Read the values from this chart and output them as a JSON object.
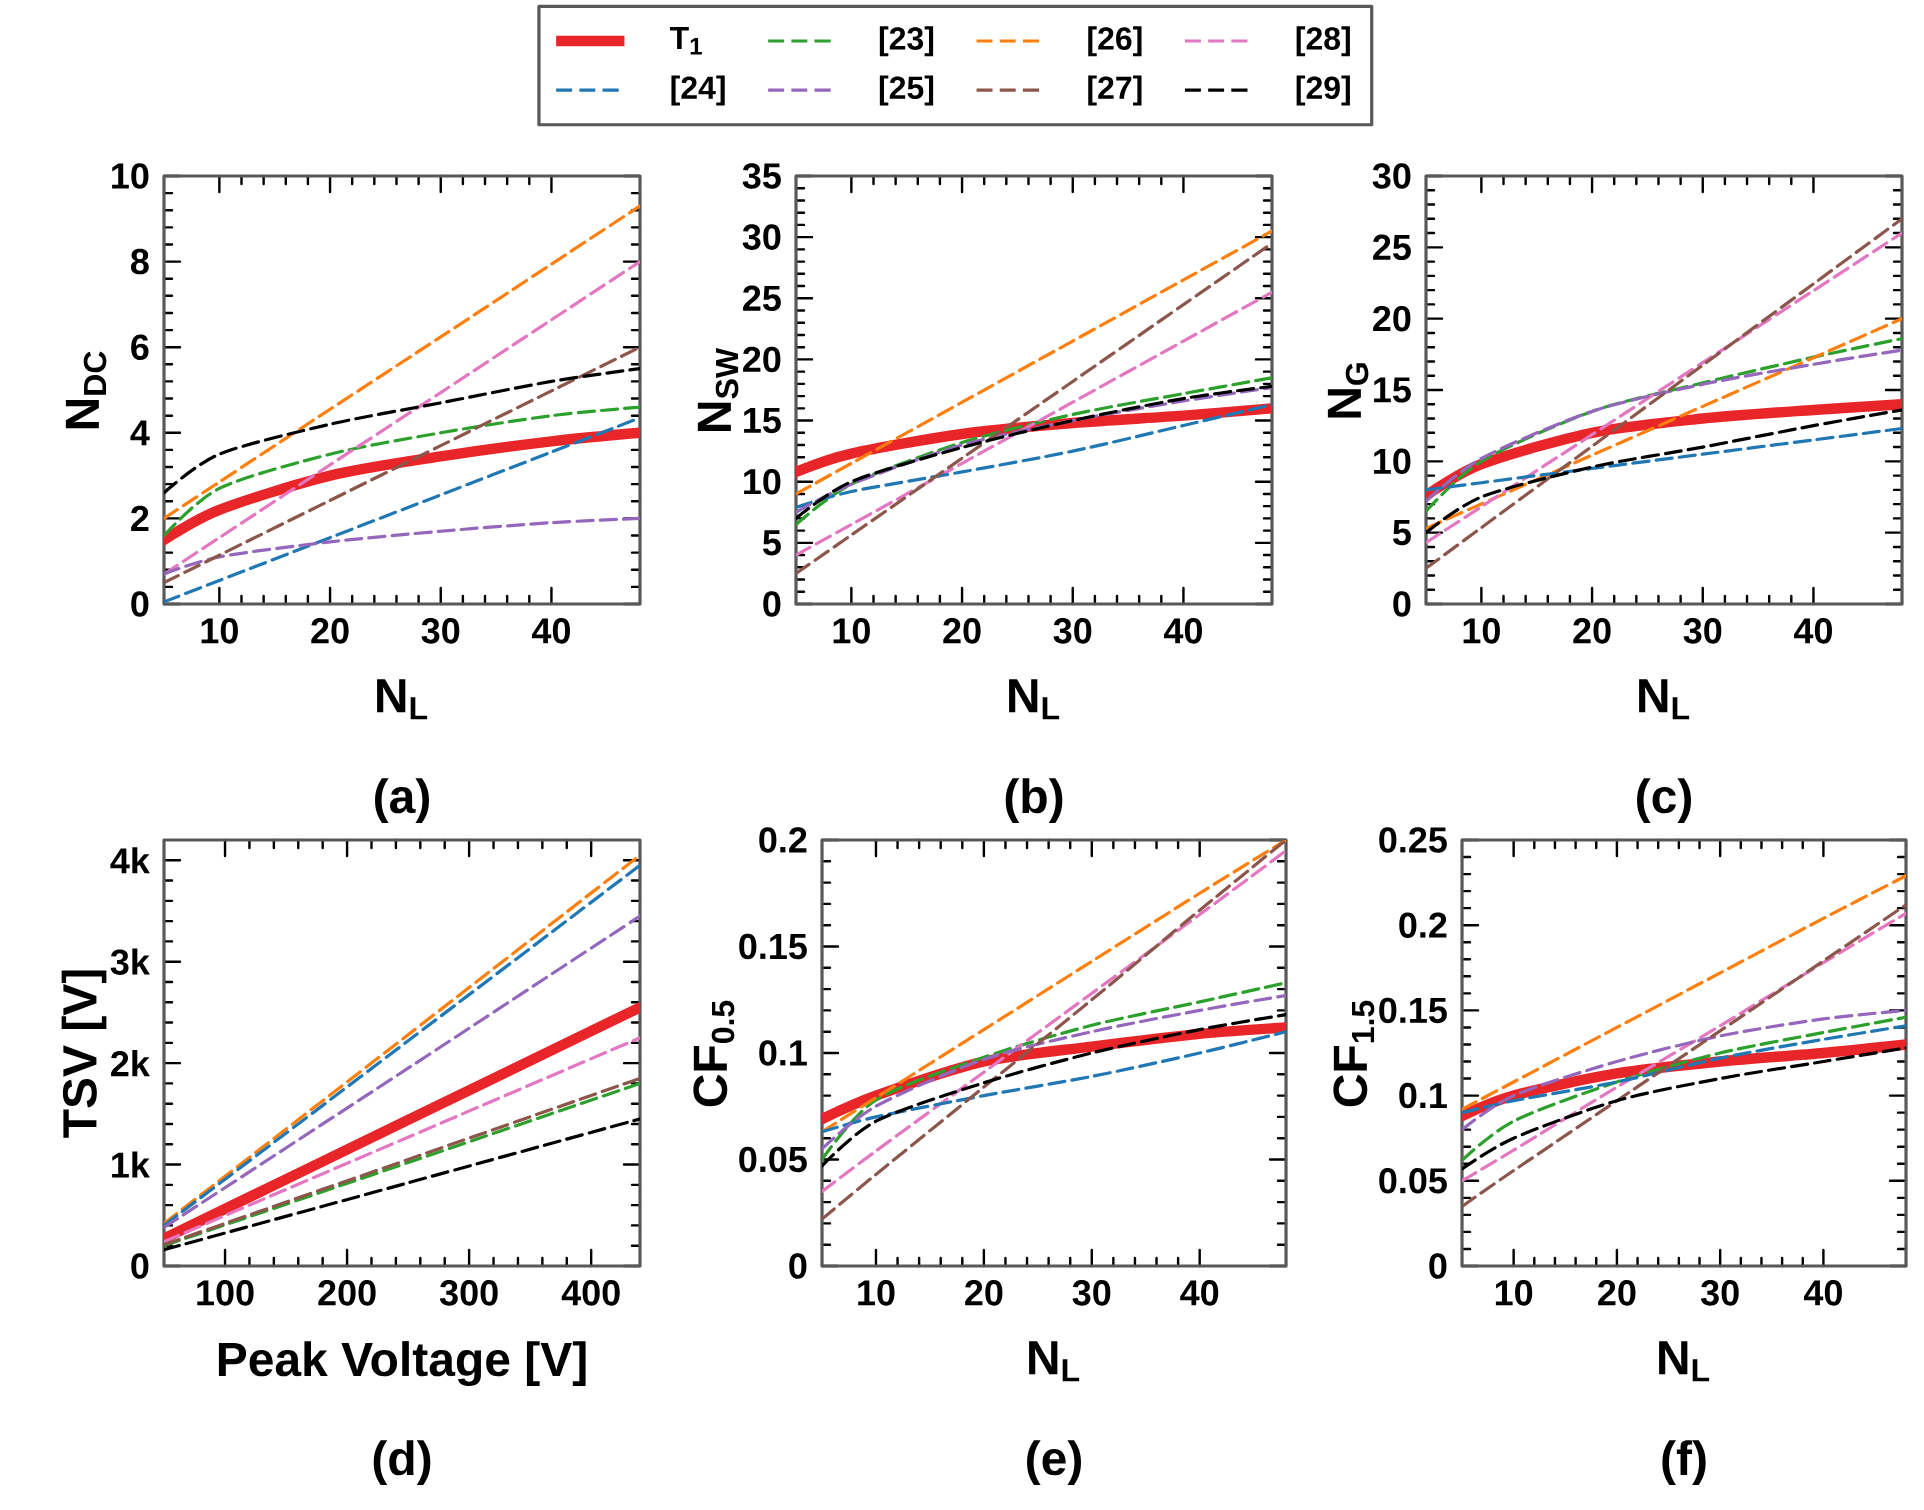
{
  "chart_data": [
    {
      "type": "line",
      "xlabel": "N$_{L}$",
      "ylabel": "N$_{DC}$",
      "annotations": [
        "(a)"
      ],
      "legend": "top",
      "x": [
        5,
        10,
        20,
        30,
        40,
        48
      ],
      "xlim": [
        5,
        48
      ],
      "xticks": [
        10,
        20,
        30,
        40
      ],
      "ylim": [
        0,
        10
      ],
      "yticks": [
        0,
        2,
        4,
        6,
        8,
        10
      ],
      "series": [
        {
          "name": "T$_{1}$",
          "color": "#e8262a",
          "line_style": "solid",
          "values": [
            1.5,
            2.2,
            3.0,
            3.45,
            3.8,
            4.0
          ]
        },
        {
          "name": "[23]",
          "color": "#2ca02c",
          "line_style": "dashed",
          "values": [
            1.6,
            2.7,
            3.5,
            4.0,
            4.4,
            4.6
          ]
        },
        {
          "name": "[26]",
          "color": "#ff7f0e",
          "line_style": "dashed",
          "values": [
            2.0,
            2.85,
            4.55,
            6.24,
            7.94,
            9.3
          ]
        },
        {
          "name": "[28]",
          "color": "#e377c2",
          "line_style": "dashed",
          "values": [
            0.7,
            1.55,
            3.25,
            4.94,
            6.64,
            8.0
          ]
        },
        {
          "name": "[24]",
          "color": "#1f77b4",
          "line_style": "dashed",
          "values": [
            0.05,
            0.55,
            1.55,
            2.55,
            3.55,
            4.35
          ]
        },
        {
          "name": "[25]",
          "color": "#9467bd",
          "line_style": "dashed",
          "values": [
            0.7,
            1.1,
            1.45,
            1.7,
            1.9,
            2.0
          ]
        },
        {
          "name": "[27]",
          "color": "#8c564b",
          "line_style": "dashed",
          "values": [
            0.5,
            1.14,
            2.42,
            3.7,
            4.98,
            6.0
          ]
        },
        {
          "name": "[29]",
          "color": "#000000",
          "line_style": "dashed",
          "values": [
            2.6,
            3.5,
            4.2,
            4.7,
            5.2,
            5.5
          ]
        }
      ]
    },
    {
      "type": "line",
      "xlabel": "N$_{L}$",
      "ylabel": "N$_{SW}$",
      "annotations": [
        "(b)"
      ],
      "x": [
        5,
        10,
        20,
        30,
        40,
        48
      ],
      "xlim": [
        5,
        48
      ],
      "xticks": [
        10,
        20,
        30,
        40
      ],
      "ylim": [
        0,
        35
      ],
      "yticks": [
        0,
        5,
        10,
        15,
        20,
        25,
        30,
        35
      ],
      "series": [
        {
          "color": "#e8262a",
          "line_style": "solid",
          "values": [
            10.8,
            12.3,
            13.9,
            14.8,
            15.4,
            16.0
          ]
        },
        {
          "color": "#2ca02c",
          "line_style": "dashed",
          "values": [
            6.5,
            9.8,
            13.2,
            15.5,
            17.2,
            18.5
          ]
        },
        {
          "color": "#ff7f0e",
          "line_style": "dashed",
          "values": [
            9.0,
            11.5,
            16.5,
            21.5,
            26.5,
            30.5
          ]
        },
        {
          "color": "#e377c2",
          "line_style": "dashed",
          "values": [
            4.0,
            6.5,
            11.5,
            16.5,
            21.5,
            25.5
          ]
        },
        {
          "color": "#1f77b4",
          "line_style": "dashed",
          "values": [
            7.9,
            9.2,
            10.8,
            12.5,
            14.6,
            16.3
          ]
        },
        {
          "color": "#9467bd",
          "line_style": "dashed",
          "values": [
            7.5,
            9.8,
            13.0,
            15.0,
            16.6,
            17.7
          ]
        },
        {
          "color": "#8c564b",
          "line_style": "dashed",
          "values": [
            2.5,
            5.64,
            11.92,
            18.2,
            24.48,
            29.5
          ]
        },
        {
          "color": "#000000",
          "line_style": "dashed",
          "values": [
            7.0,
            10.0,
            12.8,
            15.0,
            16.8,
            17.8
          ]
        }
      ]
    },
    {
      "type": "line",
      "xlabel": "N$_{L}$",
      "ylabel": "N$_{G}$",
      "annotations": [
        "(c)"
      ],
      "x": [
        5,
        10,
        20,
        30,
        40,
        48
      ],
      "xlim": [
        5,
        48
      ],
      "xticks": [
        10,
        20,
        30,
        40
      ],
      "ylim": [
        0,
        30
      ],
      "yticks": [
        0,
        5,
        10,
        15,
        20,
        25,
        30
      ],
      "series": [
        {
          "color": "#e8262a",
          "line_style": "solid",
          "values": [
            7.6,
            9.8,
            12.0,
            13.0,
            13.6,
            14.0
          ]
        },
        {
          "color": "#2ca02c",
          "line_style": "dashed",
          "values": [
            6.5,
            10.0,
            13.5,
            15.5,
            17.3,
            18.6
          ]
        },
        {
          "color": "#ff7f0e",
          "line_style": "dashed",
          "values": [
            5.3,
            7.01,
            10.43,
            13.85,
            17.26,
            20.0
          ]
        },
        {
          "color": "#e377c2",
          "line_style": "dashed",
          "values": [
            4.3,
            6.82,
            11.87,
            16.92,
            21.96,
            26.0
          ]
        },
        {
          "color": "#1f77b4",
          "line_style": "dashed",
          "values": [
            8.0,
            8.5,
            9.5,
            10.5,
            11.5,
            12.3
          ]
        },
        {
          "color": "#9467bd",
          "line_style": "dashed",
          "values": [
            7.2,
            10.2,
            13.5,
            15.4,
            16.8,
            17.8
          ]
        },
        {
          "color": "#8c564b",
          "line_style": "dashed",
          "values": [
            2.5,
            5.35,
            11.05,
            16.74,
            22.44,
            27.0
          ]
        },
        {
          "color": "#000000",
          "line_style": "dashed",
          "values": [
            5.0,
            7.5,
            9.6,
            11.0,
            12.5,
            13.6
          ]
        }
      ]
    },
    {
      "type": "line",
      "xlabel": "Peak Voltage [V]",
      "ylabel": "TSV [V]",
      "annotations": [
        "(d)"
      ],
      "x": [
        50,
        250,
        440
      ],
      "xlim": [
        50,
        440
      ],
      "xticks": [
        100,
        200,
        300,
        400
      ],
      "ylim": [
        0,
        4200
      ],
      "yticks": [
        0,
        {
          "value": 1000,
          "label": "1k"
        },
        {
          "value": 2000,
          "label": "2k"
        },
        {
          "value": 3000,
          "label": "3k"
        },
        {
          "value": 4000,
          "label": "4k"
        }
      ],
      "series": [
        {
          "color": "#e8262a",
          "line_style": "solid",
          "values": [
            270,
            1440,
            2550
          ]
        },
        {
          "color": "#2ca02c",
          "line_style": "dashed",
          "values": [
            200,
            1020,
            1800
          ]
        },
        {
          "color": "#ff7f0e",
          "line_style": "dashed",
          "values": [
            420,
            2280,
            4050
          ]
        },
        {
          "color": "#e377c2",
          "line_style": "dashed",
          "values": [
            240,
            1270,
            2250
          ]
        },
        {
          "color": "#1f77b4",
          "line_style": "dashed",
          "values": [
            400,
            2220,
            3950
          ]
        },
        {
          "color": "#9467bd",
          "line_style": "dashed",
          "values": [
            380,
            1950,
            3450
          ]
        },
        {
          "color": "#8c564b",
          "line_style": "dashed",
          "values": [
            210,
            1050,
            1850
          ]
        },
        {
          "color": "#000000",
          "line_style": "dashed",
          "values": [
            160,
            820,
            1450
          ]
        }
      ]
    },
    {
      "type": "line",
      "xlabel": "N$_{L}$",
      "ylabel": "CF$_{0.5}$",
      "annotations": [
        "(e)"
      ],
      "x": [
        5,
        10,
        20,
        30,
        40,
        48
      ],
      "xlim": [
        5,
        48
      ],
      "xticks": [
        10,
        20,
        30,
        40
      ],
      "ylim": [
        0,
        0.2
      ],
      "yticks": [
        0,
        0.05,
        0.1,
        0.15,
        0.2
      ],
      "series": [
        {
          "color": "#e8262a",
          "line_style": "solid",
          "values": [
            0.069,
            0.08,
            0.096,
            0.103,
            0.109,
            0.112
          ]
        },
        {
          "color": "#2ca02c",
          "line_style": "dashed",
          "values": [
            0.05,
            0.078,
            0.098,
            0.113,
            0.124,
            0.133
          ]
        },
        {
          "color": "#ff7f0e",
          "line_style": "dashed",
          "values": [
            0.063,
            0.079,
            0.111,
            0.143,
            0.175,
            0.2
          ]
        },
        {
          "color": "#e377c2",
          "line_style": "dashed",
          "values": [
            0.035,
            0.054,
            0.091,
            0.128,
            0.165,
            0.195
          ]
        },
        {
          "color": "#1f77b4",
          "line_style": "dashed",
          "values": [
            0.063,
            0.07,
            0.08,
            0.089,
            0.1,
            0.11
          ]
        },
        {
          "color": "#9467bd",
          "line_style": "dashed",
          "values": [
            0.055,
            0.075,
            0.097,
            0.11,
            0.12,
            0.127
          ]
        },
        {
          "color": "#8c564b",
          "line_style": "dashed",
          "values": [
            0.022,
            0.043,
            0.084,
            0.125,
            0.167,
            0.2
          ]
        },
        {
          "color": "#000000",
          "line_style": "dashed",
          "values": [
            0.047,
            0.068,
            0.086,
            0.1,
            0.111,
            0.118
          ]
        }
      ]
    },
    {
      "type": "line",
      "xlabel": "N$_{L}$",
      "ylabel": "CF$_{1.5}$",
      "annotations": [
        "(f)"
      ],
      "x": [
        5,
        10,
        20,
        30,
        40,
        48
      ],
      "xlim": [
        5,
        48
      ],
      "xticks": [
        10,
        20,
        30,
        40
      ],
      "ylim": [
        0,
        0.25
      ],
      "yticks": [
        0,
        0.05,
        0.1,
        0.15,
        0.2,
        0.25
      ],
      "series": [
        {
          "color": "#e8262a",
          "line_style": "solid",
          "values": [
            0.088,
            0.1,
            0.113,
            0.12,
            0.125,
            0.13
          ]
        },
        {
          "color": "#2ca02c",
          "line_style": "dashed",
          "values": [
            0.062,
            0.085,
            0.108,
            0.125,
            0.137,
            0.146
          ]
        },
        {
          "color": "#ff7f0e",
          "line_style": "dashed",
          "values": [
            0.092,
            0.108,
            0.14,
            0.172,
            0.204,
            0.229
          ]
        },
        {
          "color": "#e377c2",
          "line_style": "dashed",
          "values": [
            0.05,
            0.068,
            0.105,
            0.141,
            0.178,
            0.207
          ]
        },
        {
          "color": "#1f77b4",
          "line_style": "dashed",
          "values": [
            0.09,
            0.097,
            0.108,
            0.122,
            0.133,
            0.141
          ]
        },
        {
          "color": "#9467bd",
          "line_style": "dashed",
          "values": [
            0.08,
            0.1,
            0.12,
            0.135,
            0.145,
            0.15
          ]
        },
        {
          "color": "#8c564b",
          "line_style": "dashed",
          "values": [
            0.035,
            0.056,
            0.097,
            0.138,
            0.179,
            0.212
          ]
        },
        {
          "color": "#000000",
          "line_style": "dashed",
          "values": [
            0.057,
            0.075,
            0.097,
            0.11,
            0.12,
            0.128
          ]
        }
      ]
    }
  ]
}
